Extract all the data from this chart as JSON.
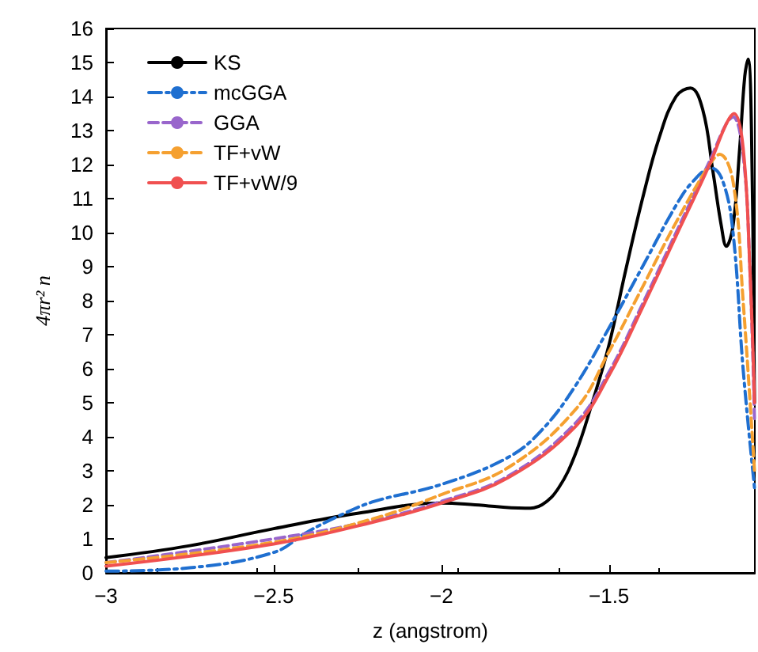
{
  "chart_data": {
    "type": "line",
    "xlabel": "z (angstrom)",
    "ylabel": "4πr² n",
    "xlim": [
      -3,
      -1.065
    ],
    "xticks": [
      -3,
      -2.5,
      -2,
      -1.5
    ],
    "ylim": [
      0,
      16
    ],
    "yticks": [
      0,
      1,
      2,
      3,
      4,
      5,
      6,
      7,
      8,
      9,
      10,
      11,
      12,
      13,
      14,
      15,
      16
    ],
    "grid": false,
    "legend": "top left",
    "marker": "none",
    "series": [
      {
        "name": "KS",
        "color": "#000000",
        "line_style": "solid",
        "x": [
          -3,
          -2.75,
          -2.5,
          -2.25,
          -2,
          -1.9,
          -1.75,
          -1.7,
          -1.65,
          -1.6,
          -1.55,
          -1.5,
          -1.45,
          -1.4,
          -1.35,
          -1.3,
          -1.257,
          -1.22,
          -1.19,
          -1.165,
          -1.15,
          -1.13,
          -1.11,
          -1.095,
          -1.085,
          -1.075,
          -1.066
        ],
        "values": [
          0.45,
          0.8,
          1.3,
          1.75,
          2.05,
          2,
          1.9,
          2,
          2.5,
          3.5,
          5,
          6.7,
          8.9,
          11,
          12.8,
          14,
          14.25,
          13.6,
          11.8,
          10.2,
          9.6,
          10.2,
          12.5,
          14.6,
          15.1,
          13,
          5
        ]
      },
      {
        "name": "mcGGA",
        "color": "#1f6fd0",
        "line_style": "dashdot",
        "x": [
          -3,
          -2.75,
          -2.5,
          -2.4,
          -2.3,
          -2.2,
          -2,
          -1.8,
          -1.7,
          -1.6,
          -1.5,
          -1.4,
          -1.3,
          -1.25,
          -1.195,
          -1.16,
          -1.13,
          -1.1,
          -1.066
        ],
        "values": [
          0.05,
          0.15,
          0.6,
          1.2,
          1.7,
          2.1,
          2.6,
          3.4,
          4.2,
          5.5,
          7.2,
          9,
          10.8,
          11.5,
          11.9,
          11.5,
          10,
          6,
          2.5
        ]
      },
      {
        "name": "GGA",
        "color": "#9966cc",
        "line_style": "dashed",
        "x": [
          -3,
          -2.5,
          -2.2,
          -2,
          -1.8,
          -1.6,
          -1.5,
          -1.4,
          -1.3,
          -1.2,
          -1.15,
          -1.13,
          -1.1,
          -1.08,
          -1.066
        ],
        "values": [
          0.3,
          1,
          1.55,
          2.1,
          2.85,
          4.4,
          5.9,
          7.9,
          10,
          12.1,
          13.2,
          13.4,
          12.3,
          9,
          4.5
        ]
      },
      {
        "name": "TF+vW",
        "color": "#f5a030",
        "line_style": "dashed",
        "x": [
          -3,
          -2.5,
          -2.2,
          -2,
          -1.8,
          -1.6,
          -1.5,
          -1.4,
          -1.3,
          -1.2,
          -1.17,
          -1.13,
          -1.1,
          -1.066
        ],
        "values": [
          0.3,
          0.9,
          1.6,
          2.3,
          3.1,
          4.8,
          6.5,
          8.4,
          10.3,
          12,
          12.3,
          11.5,
          8,
          3
        ]
      },
      {
        "name": "TF+vW/9",
        "color": "#f05050",
        "line_style": "solid",
        "x": [
          -3,
          -2.5,
          -2.2,
          -2,
          -1.8,
          -1.6,
          -1.5,
          -1.4,
          -1.3,
          -1.2,
          -1.15,
          -1.127,
          -1.1,
          -1.08,
          -1.066
        ],
        "values": [
          0.2,
          0.85,
          1.5,
          2.05,
          2.8,
          4.3,
          5.8,
          7.8,
          9.9,
          12,
          13.2,
          13.5,
          12.5,
          9,
          5
        ]
      }
    ]
  }
}
